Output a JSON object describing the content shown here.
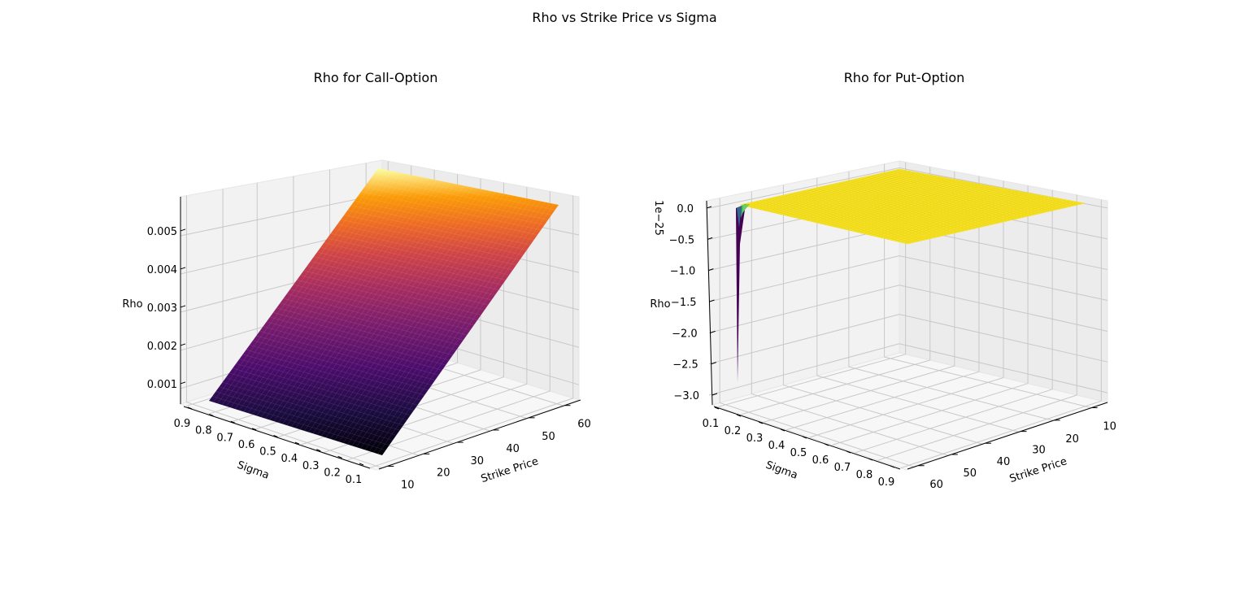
{
  "figure": {
    "title": "Rho vs Strike Price vs Sigma"
  },
  "chart_data": [
    {
      "type": "surface",
      "title": "Rho for Call-Option",
      "xlabel": "Strike Price",
      "ylabel": "Sigma",
      "zlabel": "Rho",
      "colormap": "inferno",
      "x_ticks": [
        "10",
        "20",
        "30",
        "40",
        "50",
        "60"
      ],
      "y_ticks": [
        "0.9",
        "0.8",
        "0.7",
        "0.6",
        "0.5",
        "0.4",
        "0.3",
        "0.2",
        "0.1"
      ],
      "z_ticks": [
        "0.001",
        "0.002",
        "0.003",
        "0.004",
        "0.005"
      ],
      "x_range": [
        5,
        65
      ],
      "sigma_range": [
        0.1,
        0.9
      ],
      "z_range": [
        0.0005,
        0.0059
      ],
      "surface_corners": {
        "sigma_0.9_strike_5": 0.0005,
        "sigma_0.1_strike_5": 0.0005,
        "sigma_0.9_strike_65": 0.0059,
        "sigma_0.1_strike_65": 0.0059
      }
    },
    {
      "type": "surface",
      "title": "Rho for Put-Option",
      "xlabel": "Strike Price",
      "ylabel": "Sigma",
      "zlabel": "Rho",
      "offset_text": "1e−25",
      "colormap": "viridis",
      "x_ticks": [
        "60",
        "50",
        "40",
        "30",
        "20",
        "10"
      ],
      "y_ticks": [
        "0.1",
        "0.2",
        "0.3",
        "0.4",
        "0.5",
        "0.6",
        "0.7",
        "0.8",
        "0.9"
      ],
      "z_ticks": [
        "0.0",
        "−0.5",
        "−1.0",
        "−1.5",
        "−2.0",
        "−2.5",
        "−3.0"
      ],
      "z_range": [
        -3.2,
        0.1
      ],
      "surface_description_values": {
        "flat_value": 0.0,
        "min_value_near_sigma_0.1_strike_60": -3.0
      }
    }
  ]
}
